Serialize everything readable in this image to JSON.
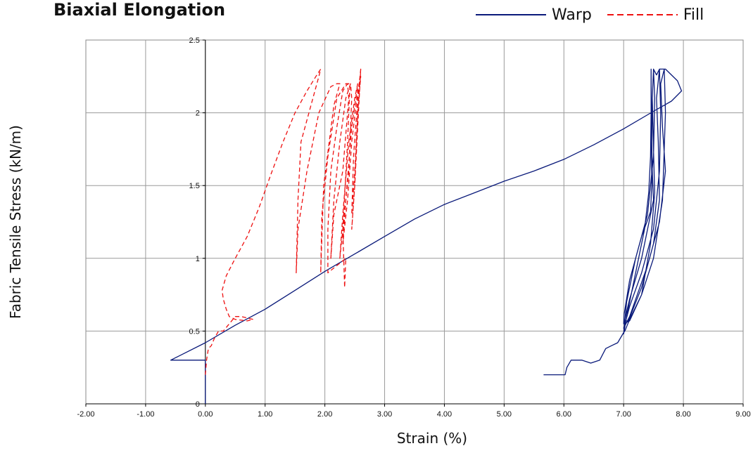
{
  "chart_data": {
    "type": "line",
    "title": "Biaxial Elongation",
    "xlabel": "Strain (%)",
    "ylabel": "Fabric Tensile Stress (kN/m)",
    "xlim": [
      -2,
      9
    ],
    "ylim": [
      0,
      2.5
    ],
    "x_ticks": [
      "-2.00",
      "-1.00",
      "0.00",
      "1.00",
      "2.00",
      "3.00",
      "4.00",
      "5.00",
      "6.00",
      "7.00",
      "8.00",
      "9.00"
    ],
    "y_ticks": [
      "0",
      "0.5",
      "1",
      "1.5",
      "2",
      "2.5"
    ],
    "grid": true,
    "legend_position": "top-right",
    "series": [
      {
        "name": "Warp",
        "color": "#0a1a7a",
        "dash": "solid",
        "x": [
          0.0,
          0.0,
          0.0,
          -0.58,
          0.0,
          0.5,
          1.0,
          1.5,
          2.0,
          2.5,
          3.0,
          3.5,
          4.0,
          4.5,
          5.0,
          5.5,
          6.0,
          6.5,
          7.0,
          7.5,
          7.8,
          7.97,
          7.9,
          7.7,
          7.6,
          7.55,
          7.5,
          7.48,
          7.47,
          7.48,
          7.5,
          7.45,
          7.3,
          7.1,
          7.02,
          7.0,
          7.05,
          7.2,
          7.35,
          7.42,
          7.45,
          7.46,
          7.46,
          7.47,
          7.45,
          7.3,
          7.1,
          7.01,
          7.0,
          7.1,
          7.3,
          7.45,
          7.52,
          7.5,
          7.48,
          7.5,
          7.52,
          7.5,
          7.4,
          7.2,
          7.05,
          7.02,
          7.08,
          7.3,
          7.5,
          7.6,
          7.58,
          7.55,
          7.6,
          7.62,
          7.6,
          7.5,
          7.3,
          7.1,
          7.03,
          7.0,
          7.1,
          7.4,
          7.6,
          7.7,
          7.65,
          7.62,
          7.68,
          7.7,
          7.65,
          7.5,
          7.3,
          7.1,
          7.02,
          7.0,
          6.9,
          6.8,
          6.7,
          6.6,
          6.45,
          6.3,
          6.12,
          6.05,
          6.02,
          6.0,
          5.66
        ],
        "y": [
          0.0,
          0.2,
          0.3,
          0.3,
          0.42,
          0.54,
          0.65,
          0.78,
          0.91,
          1.03,
          1.15,
          1.27,
          1.37,
          1.45,
          1.53,
          1.6,
          1.68,
          1.78,
          1.89,
          2.01,
          2.08,
          2.15,
          2.22,
          2.3,
          2.3,
          2.26,
          2.3,
          2.1,
          1.8,
          1.6,
          1.4,
          1.3,
          1.0,
          0.72,
          0.58,
          0.48,
          0.6,
          0.9,
          1.2,
          1.45,
          1.7,
          2.0,
          2.3,
          1.5,
          1.32,
          1.15,
          0.85,
          0.62,
          0.55,
          0.57,
          0.75,
          1.1,
          1.45,
          1.75,
          2.1,
          2.3,
          2.1,
          1.7,
          1.3,
          1.0,
          0.7,
          0.57,
          0.57,
          0.8,
          1.1,
          1.4,
          1.8,
          2.1,
          2.3,
          2.0,
          1.6,
          1.2,
          0.9,
          0.67,
          0.56,
          0.52,
          0.6,
          0.95,
          1.25,
          1.6,
          1.9,
          2.2,
          2.3,
          2.0,
          1.4,
          1.0,
          0.75,
          0.58,
          0.5,
          0.49,
          0.42,
          0.4,
          0.38,
          0.3,
          0.28,
          0.3,
          0.3,
          0.25,
          0.2,
          0.2,
          0.2
        ]
      },
      {
        "name": "Fill",
        "color": "#ee1111",
        "dash": "dashed",
        "x": [
          0.0,
          0.02,
          0.05,
          0.1,
          0.15,
          0.22,
          0.3,
          0.4,
          0.5,
          0.6,
          0.8,
          0.7,
          0.5,
          0.4,
          0.35,
          0.3,
          0.28,
          0.35,
          0.5,
          0.7,
          0.9,
          1.1,
          1.3,
          1.5,
          1.7,
          1.85,
          1.93,
          1.9,
          1.6,
          1.55,
          1.52,
          1.55,
          1.7,
          1.9,
          2.1,
          2.2,
          2.25,
          2.15,
          1.98,
          1.93,
          1.95,
          2.05,
          2.2,
          2.35,
          2.42,
          2.38,
          2.3,
          2.33,
          2.35,
          2.05,
          2.05,
          2.1,
          2.2,
          2.3,
          2.38,
          2.4,
          2.3,
          2.15,
          2.1,
          2.15,
          2.25,
          2.35,
          2.43,
          2.45,
          2.4,
          2.3,
          2.25,
          2.3,
          2.4,
          2.5,
          2.55,
          2.45,
          2.35,
          2.3,
          2.38,
          2.45,
          2.55,
          2.6,
          2.55,
          2.5,
          2.45,
          2.5,
          2.55,
          2.6,
          2.55,
          2.5,
          2.45,
          2.48,
          2.55,
          2.6
        ],
        "y": [
          0.2,
          0.3,
          0.38,
          0.4,
          0.45,
          0.5,
          0.5,
          0.55,
          0.6,
          0.6,
          0.58,
          0.57,
          0.58,
          0.6,
          0.65,
          0.72,
          0.78,
          0.88,
          1.0,
          1.15,
          1.35,
          1.58,
          1.8,
          2.0,
          2.15,
          2.25,
          2.3,
          2.25,
          1.8,
          1.4,
          0.9,
          1.2,
          1.6,
          2.0,
          2.18,
          2.2,
          2.2,
          2.05,
          1.5,
          0.9,
          1.3,
          1.7,
          2.1,
          2.2,
          2.2,
          1.8,
          1.2,
          0.8,
          1.0,
          0.9,
          1.2,
          1.6,
          1.9,
          2.15,
          2.2,
          2.1,
          1.6,
          1.3,
          1.0,
          1.4,
          1.8,
          2.1,
          2.2,
          2.1,
          1.6,
          1.2,
          1.0,
          1.3,
          1.8,
          2.1,
          2.2,
          1.9,
          1.4,
          1.1,
          1.4,
          1.8,
          2.15,
          2.25,
          2.0,
          1.5,
          1.2,
          1.5,
          1.9,
          2.3,
          2.0,
          1.6,
          1.3,
          1.7,
          2.1,
          2.3
        ]
      }
    ]
  }
}
